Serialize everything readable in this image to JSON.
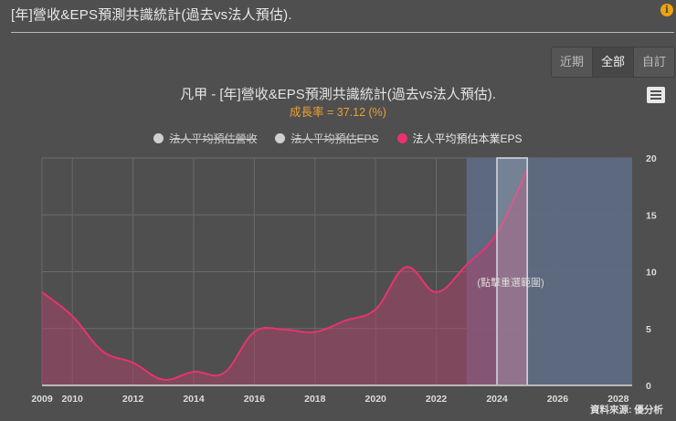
{
  "page": {
    "title": "[年]營收&EPS預測共識統計(過去vs法人預估).",
    "info_icon": "info-icon"
  },
  "range_selector": {
    "buttons": [
      {
        "label": "近期",
        "active": false
      },
      {
        "label": "全部",
        "active": true
      },
      {
        "label": "自訂",
        "active": false
      }
    ]
  },
  "chart_header": {
    "title": "凡甲 - [年]營收&EPS預測共識統計(過去vs法人預估).",
    "subtitle": "成長率 = 37.12 (%)",
    "menu_icon": "hamburger-menu-icon"
  },
  "legend": [
    {
      "label": "法人平均預估營收",
      "color": "#d0d0d0",
      "enabled": false
    },
    {
      "label": "法人平均預估EPS",
      "color": "#d0d0d0",
      "enabled": false
    },
    {
      "label": "法人平均預估本業EPS",
      "color": "#e8336f",
      "enabled": true
    }
  ],
  "navigator": {
    "hint": "(點擊重選範圍)"
  },
  "source": "資料來源: 優分析",
  "colors": {
    "background": "#4f4f4f",
    "series": "#e8336f",
    "area_fill": "#8a4a63",
    "navigator": "#5d6b82",
    "navigator_highlight": "#7f8a9c",
    "subtitle": "#f0a030"
  },
  "chart_data": {
    "type": "area",
    "title": "凡甲 - [年]營收&EPS預測共識統計(過去vs法人預估).",
    "subtitle": "成長率 = 37.12 (%)",
    "xlabel": "",
    "ylabel": "",
    "x_ticks": [
      "2009",
      "2010",
      "2012",
      "2014",
      "2016",
      "2018",
      "2020",
      "2022",
      "2024",
      "2026",
      "2028"
    ],
    "y_ticks": [
      0,
      5,
      10,
      15,
      20
    ],
    "ylim": [
      0,
      20
    ],
    "xlim": [
      2009,
      2028.5
    ],
    "y_axis_position": "right",
    "grid": true,
    "legend_position": "top",
    "series": [
      {
        "name": "法人平均預估本業EPS",
        "visible": true,
        "x": [
          2009,
          2010,
          2011,
          2012,
          2013,
          2014,
          2015,
          2016,
          2017,
          2018,
          2019,
          2020,
          2021,
          2022,
          2023,
          2024,
          2025
        ],
        "values": [
          8.2,
          6.1,
          3.0,
          2.0,
          0.5,
          1.2,
          1.1,
          4.7,
          4.9,
          4.7,
          5.7,
          6.7,
          10.4,
          8.2,
          10.6,
          13.4,
          19.0
        ]
      },
      {
        "name": "法人平均預估營收",
        "visible": false,
        "values": []
      },
      {
        "name": "法人平均預估EPS",
        "visible": false,
        "values": []
      }
    ],
    "annotations": [
      {
        "type": "shaded-range",
        "from": 2023,
        "to": 2028.5,
        "label": "(點擊重選範圍)"
      },
      {
        "type": "highlight-band",
        "from": 2024,
        "to": 2025
      }
    ]
  }
}
